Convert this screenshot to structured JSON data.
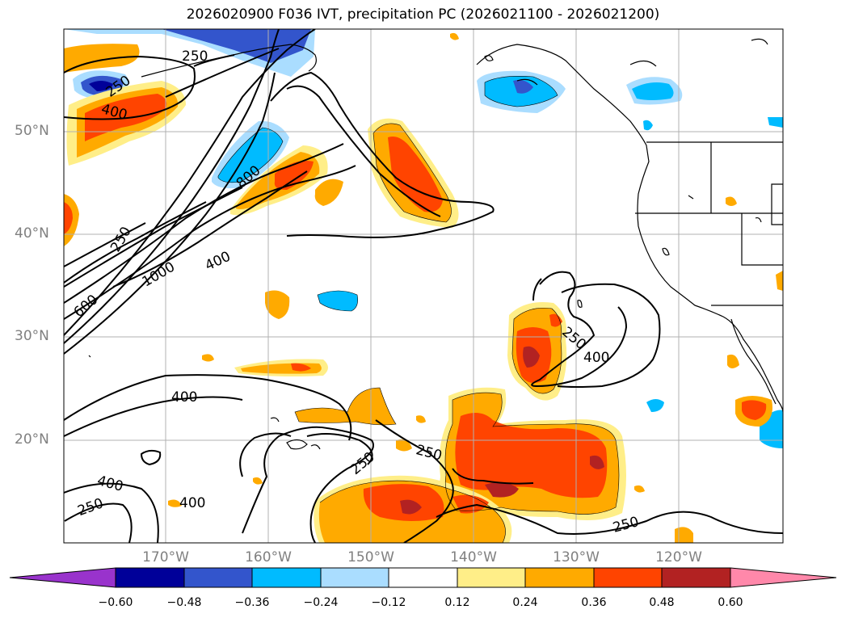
{
  "title": "2026020900 F036 IVT, precipitation PC (2026021100 - 2026021200)",
  "lat_labels": [
    "50°N",
    "40°N",
    "30°N",
    "20°N"
  ],
  "lon_labels": [
    "170°W",
    "160°W",
    "150°W",
    "140°W",
    "130°W",
    "120°W"
  ],
  "contour_labels": [
    "250",
    "250",
    "400",
    "250",
    "800",
    "1000",
    "400",
    "600",
    "250",
    "400",
    "400",
    "250",
    "400",
    "400",
    "250",
    "250",
    "250"
  ],
  "colorbar": {
    "ticks": [
      "−0.60",
      "−0.48",
      "−0.36",
      "−0.24",
      "−0.12",
      "0.12",
      "0.24",
      "0.36",
      "0.48",
      "0.60"
    ],
    "colors": [
      "#9933cc",
      "#000099",
      "#3355cc",
      "#00bbff",
      "#aaddff",
      "#ffffff",
      "#ffee88",
      "#ffaa00",
      "#ff4400",
      "#b22222",
      "#ff88aa"
    ]
  },
  "colors": {
    "positive_low": "#ffee88",
    "positive_mid": "#ffaa00",
    "positive_high": "#ff4400",
    "positive_top": "#b22222",
    "negative_low": "#aaddff",
    "negative_mid": "#00bbff",
    "negative_high": "#3355cc",
    "negative_top": "#000099"
  }
}
